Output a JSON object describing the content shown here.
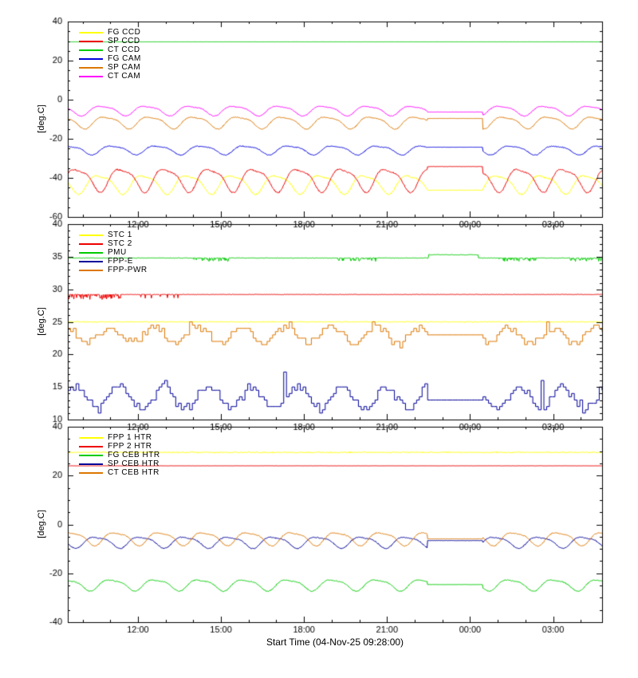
{
  "page": {
    "background": "#ffffff",
    "axis_color": "#000000"
  },
  "chart_data": {
    "type": "line",
    "title": "",
    "xlabel": "Start Time (04-Nov-25 09:28:00)",
    "x_range_hours": [
      9.467,
      28.77
    ],
    "x_ticks": [
      {
        "t": 12,
        "label": "12:00"
      },
      {
        "t": 15,
        "label": "15:00"
      },
      {
        "t": 18,
        "label": "18:00"
      },
      {
        "t": 21,
        "label": "21:00"
      },
      {
        "t": 24,
        "label": "00:00"
      },
      {
        "t": 27,
        "label": "03:00"
      }
    ],
    "x_minor_step": 1,
    "legend_position": "top-left",
    "grid": false,
    "panels": [
      {
        "ylabel": "[deg.C]",
        "ylim": [
          -60,
          40
        ],
        "yticks": [
          -60,
          -40,
          -20,
          0,
          20,
          40
        ],
        "y_minor_step": 5,
        "series": [
          {
            "name": "FG CCD",
            "color": "#ffff00",
            "kind": "wave",
            "base": -42.8,
            "amp": 5.0,
            "period": 1.6,
            "phase": 3.3,
            "noise": 0.45,
            "flat": {
              "from": 22.45,
              "to": 24.45,
              "level": -46.3
            }
          },
          {
            "name": "SP CCD",
            "color": "#ee0000",
            "kind": "wave",
            "base": -40.5,
            "amp": 6.2,
            "period": 1.6,
            "phase": 0.2,
            "noise": 0.45,
            "flat": {
              "from": 22.45,
              "to": 24.45,
              "level": -34.2
            }
          },
          {
            "name": "CT CCD",
            "color": "#00cc00",
            "kind": "flat",
            "level": 29.6,
            "noise": 0.04
          },
          {
            "name": "FG CAM",
            "color": "#0000dd",
            "kind": "wave",
            "base": -25.6,
            "amp": 2.4,
            "period": 1.6,
            "phase": 1.4,
            "noise": 0.3,
            "flat": {
              "from": 22.45,
              "to": 24.45,
              "level": -24.3
            }
          },
          {
            "name": "SP CAM",
            "color": "#dd7700",
            "kind": "wave",
            "base": -11.4,
            "amp": 3.2,
            "period": 1.6,
            "phase": 2.4,
            "noise": 0.3,
            "flat": {
              "from": 22.45,
              "to": 24.45,
              "level": -9.6
            }
          },
          {
            "name": "CT CAM",
            "color": "#ff00ff",
            "kind": "wave",
            "base": -5.4,
            "amp": 2.6,
            "period": 1.6,
            "phase": 2.9,
            "noise": 0.25,
            "flat": {
              "from": 22.45,
              "to": 24.45,
              "level": -6.3
            }
          }
        ]
      },
      {
        "ylabel": "[deg.C]",
        "ylim": [
          10,
          40
        ],
        "yticks": [
          10,
          15,
          20,
          25,
          30,
          35,
          40
        ],
        "y_minor_step": 1,
        "series": [
          {
            "name": "STC 1",
            "color": "#ffff00",
            "kind": "flat",
            "level": 25.0,
            "noise": 0.08
          },
          {
            "name": "STC 2",
            "color": "#ee0000",
            "kind": "flat",
            "level": 29.2,
            "noise": 0.05,
            "spike_windows": [
              {
                "from": 9.47,
                "to": 11.4,
                "amp": 0.8,
                "p": 0.45
              },
              {
                "from": 12.1,
                "to": 13.6,
                "amp": 0.6,
                "p": 0.12
              }
            ]
          },
          {
            "name": "PMU",
            "color": "#00cc00",
            "kind": "flat",
            "level": 34.8,
            "noise": 0.06,
            "segments": [
              {
                "from": 22.5,
                "to": 24.3,
                "level": 35.3
              }
            ],
            "spike_windows": [
              {
                "from": 14.0,
                "to": 15.3,
                "amp": 0.5,
                "p": 0.4
              },
              {
                "from": 19.0,
                "to": 20.6,
                "amp": 0.5,
                "p": 0.45
              },
              {
                "from": 24.9,
                "to": 26.4,
                "amp": 0.5,
                "p": 0.4
              },
              {
                "from": 27.6,
                "to": 28.77,
                "amp": 0.5,
                "p": 0.45
              }
            ]
          },
          {
            "name": "FPP-E",
            "color": "#000099",
            "kind": "steps",
            "base": 13.4,
            "amp": 1.7,
            "period": 1.6,
            "phase": 0.6,
            "noise": 0.9,
            "quant": 0.5,
            "hold": 0.1,
            "min": 11,
            "max": 17.5,
            "flat": {
              "from": 22.45,
              "to": 24.45,
              "level": 13
            },
            "spikes": [
              {
                "t": 13.0,
                "v": 16
              },
              {
                "t": 17.3,
                "v": 17.3
              },
              {
                "t": 26.6,
                "v": 16
              }
            ]
          },
          {
            "name": "FPP-PWR",
            "color": "#dd7700",
            "kind": "steps",
            "base": 23.0,
            "amp": 1.2,
            "period": 1.6,
            "phase": 2.0,
            "noise": 0.8,
            "quant": 0.5,
            "hold": 0.1,
            "min": 20.5,
            "max": 25.2,
            "flat": {
              "from": 22.45,
              "to": 24.45,
              "level": 23
            },
            "spikes": [
              {
                "t": 13.9,
                "v": 25
              },
              {
                "t": 17.5,
                "v": 25
              },
              {
                "t": 26.8,
                "v": 25
              }
            ]
          }
        ]
      },
      {
        "ylabel": "[deg.C]",
        "ylim": [
          -40,
          40
        ],
        "yticks": [
          -40,
          -20,
          0,
          20,
          40
        ],
        "y_minor_step": 5,
        "series": [
          {
            "name": "FPP 1 HTR",
            "color": "#ffff00",
            "kind": "flat",
            "level": 29.5,
            "noise": 0.3
          },
          {
            "name": "FPP 2 HTR",
            "color": "#ee0000",
            "kind": "flat",
            "level": 24.0,
            "noise": 0.06
          },
          {
            "name": "FG CEB HTR",
            "color": "#00cc00",
            "kind": "wave",
            "base": -24.6,
            "amp": 2.4,
            "period": 1.6,
            "phase": 1.6,
            "noise": 0.25,
            "flat": {
              "from": 22.45,
              "to": 24.45,
              "level": -24.6
            }
          },
          {
            "name": "SP CEB HTR",
            "color": "#000099",
            "kind": "wave",
            "base": -7.1,
            "amp": 2.4,
            "period": 1.6,
            "phase": 3.7,
            "noise": 0.25,
            "flat": {
              "from": 22.45,
              "to": 24.45,
              "level": -6.6
            }
          },
          {
            "name": "CT CEB HTR",
            "color": "#dd7700",
            "kind": "wave",
            "base": -5.6,
            "amp": 2.8,
            "period": 1.6,
            "phase": 1.0,
            "noise": 0.25,
            "flat": {
              "from": 22.45,
              "to": 24.45,
              "level": -5.9
            }
          }
        ]
      }
    ]
  }
}
